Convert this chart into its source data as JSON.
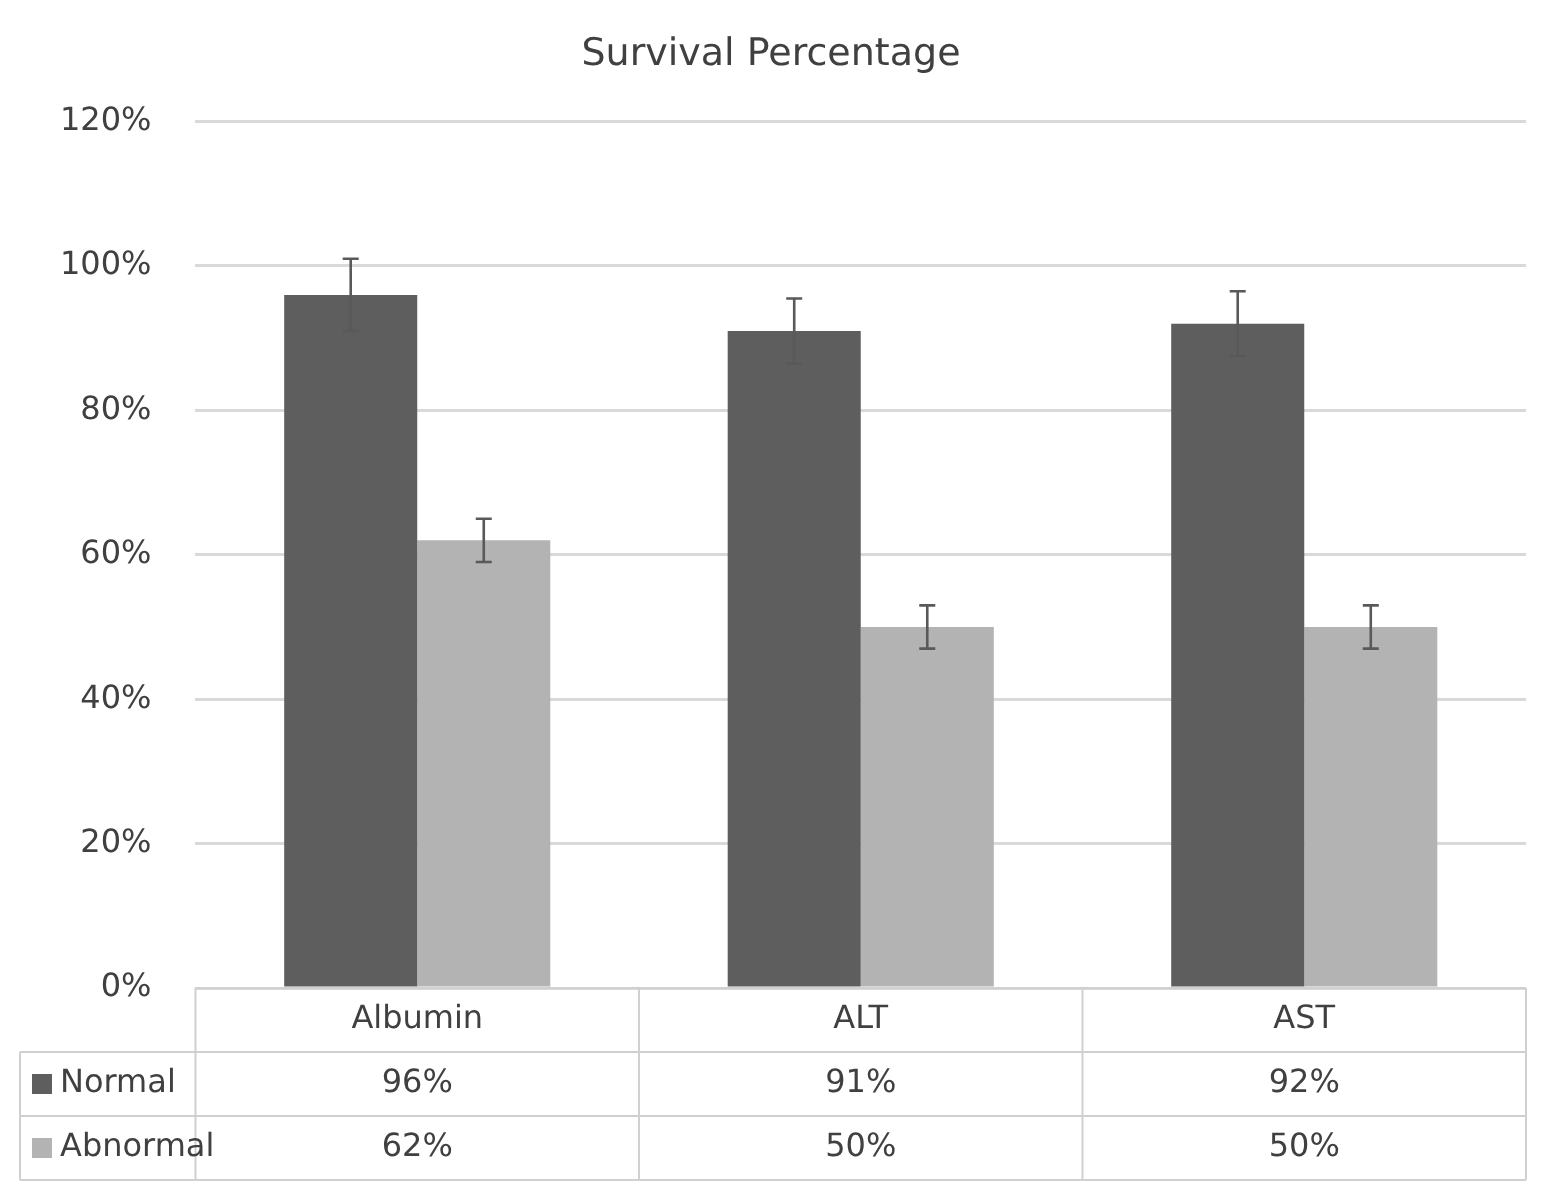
{
  "chart_data": {
    "type": "bar",
    "title": "Survival Percentage",
    "categories": [
      "Albumin",
      "ALT",
      "AST"
    ],
    "series": [
      {
        "name": "Normal",
        "color": "#5e5e5e",
        "values": [
          96,
          91,
          92
        ],
        "errors": [
          5,
          4.5,
          4.5
        ],
        "value_labels": [
          "96%",
          "91%",
          "92%"
        ]
      },
      {
        "name": "Abnormal",
        "color": "#b3b3b3",
        "values": [
          62,
          50,
          50
        ],
        "errors": [
          3,
          3,
          3
        ],
        "value_labels": [
          "62%",
          "50%",
          "50%"
        ]
      }
    ],
    "ylim": [
      0,
      120
    ],
    "yticks": [
      {
        "value": 0,
        "label": "0%"
      },
      {
        "value": 20,
        "label": "20%"
      },
      {
        "value": 40,
        "label": "40%"
      },
      {
        "value": 60,
        "label": "60%"
      },
      {
        "value": 80,
        "label": "80%"
      },
      {
        "value": 100,
        "label": "100%"
      },
      {
        "value": 120,
        "label": "120%"
      }
    ],
    "grid": "y",
    "legend": "bottom"
  }
}
